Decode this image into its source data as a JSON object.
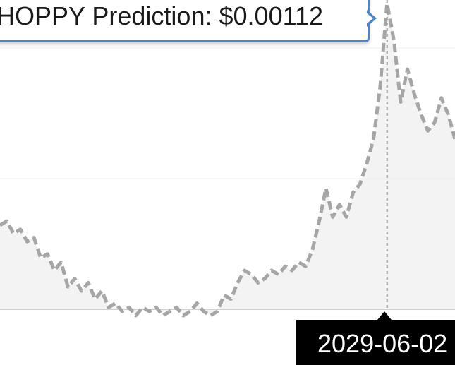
{
  "tooltip": {
    "label": "HOPPY Prediction:",
    "value": "$0.00112"
  },
  "crosshair": {
    "x_label": "2029-06-02"
  },
  "colors": {
    "line": "#a6a6a6",
    "area": "#f3f3f3",
    "crosshair": "#9a9a9a",
    "tooltip_border": "#4a86c8",
    "badge": "#000000"
  },
  "chart_data": {
    "type": "line",
    "title": "",
    "xlabel": "",
    "ylabel": "",
    "grid": false,
    "series": [
      {
        "name": "HOPPY Prediction",
        "style": "dashed",
        "values": [
          0.00058,
          0.00059,
          0.00056,
          0.00057,
          0.00054,
          0.00055,
          0.0005,
          0.00051,
          0.00047,
          0.00049,
          0.00043,
          0.00045,
          0.00042,
          0.00044,
          0.0004,
          0.00042,
          0.00038,
          0.00039,
          0.00037,
          0.00038,
          0.00036,
          0.00038,
          0.00037,
          0.00038,
          0.00036,
          0.00037,
          0.00038,
          0.00036,
          0.00037,
          0.00039,
          0.00037,
          0.00036,
          0.00037,
          0.00041,
          0.0004,
          0.00044,
          0.00047,
          0.00046,
          0.00044,
          0.00045,
          0.00047,
          0.00046,
          0.00048,
          0.00047,
          0.00049,
          0.00048,
          0.00052,
          0.00059,
          0.00067,
          0.0006,
          0.00063,
          0.0006,
          0.00066,
          0.00068,
          0.00073,
          0.00079,
          0.00092,
          0.00112,
          0.00103,
          0.00088,
          0.00096,
          0.0009,
          0.00085,
          0.00081,
          0.00083,
          0.00089,
          0.00085,
          0.00079
        ]
      }
    ],
    "highlight": {
      "x": "2029-06-02",
      "y": 0.00112
    }
  }
}
